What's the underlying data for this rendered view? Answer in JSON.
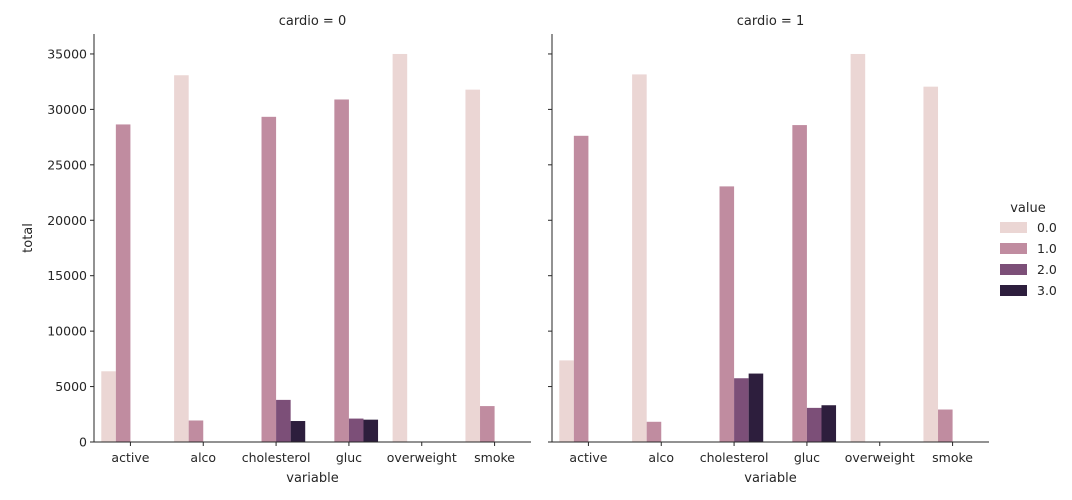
{
  "chart_data": {
    "type": "bar",
    "xlabel": "variable",
    "ylabel": "total",
    "ylim": [
      0,
      36800
    ],
    "yticks": [
      0,
      5000,
      10000,
      15000,
      20000,
      25000,
      30000,
      35000
    ],
    "ytick_labels": [
      "0",
      "5000",
      "10000",
      "15000",
      "20000",
      "25000",
      "30000",
      "35000"
    ],
    "categories": [
      "active",
      "alco",
      "cholesterol",
      "gluc",
      "overweight",
      "smoke"
    ],
    "legend": {
      "title": "value",
      "placement": "right",
      "entries": [
        "0.0",
        "1.0",
        "2.0",
        "3.0"
      ]
    },
    "colors": [
      "#ebd6d4",
      "#c08ca0",
      "#7c4f78",
      "#2d1e3d"
    ],
    "facets": [
      {
        "title": "cardio = 0",
        "series": [
          {
            "name": "0.0",
            "values": [
              6378,
              33080,
              0,
              0,
              35000,
              31781
            ]
          },
          {
            "name": "1.0",
            "values": [
              28643,
              1941,
              29330,
              30894,
              0,
              3240
            ]
          },
          {
            "name": "2.0",
            "values": [
              0,
              0,
              3799,
              2112,
              0,
              0
            ]
          },
          {
            "name": "3.0",
            "values": [
              0,
              0,
              1892,
              2015,
              0,
              0
            ]
          }
        ]
      },
      {
        "title": "cardio = 1",
        "series": [
          {
            "name": "0.0",
            "values": [
              7361,
              33156,
              0,
              0,
              35000,
              32050
            ]
          },
          {
            "name": "1.0",
            "values": [
              27618,
              1823,
              23055,
              28585,
              0,
              2929
            ]
          },
          {
            "name": "2.0",
            "values": [
              0,
              0,
              5750,
              3078,
              0,
              0
            ]
          },
          {
            "name": "3.0",
            "values": [
              0,
              0,
              6173,
              3316,
              0,
              0
            ]
          }
        ]
      }
    ]
  }
}
